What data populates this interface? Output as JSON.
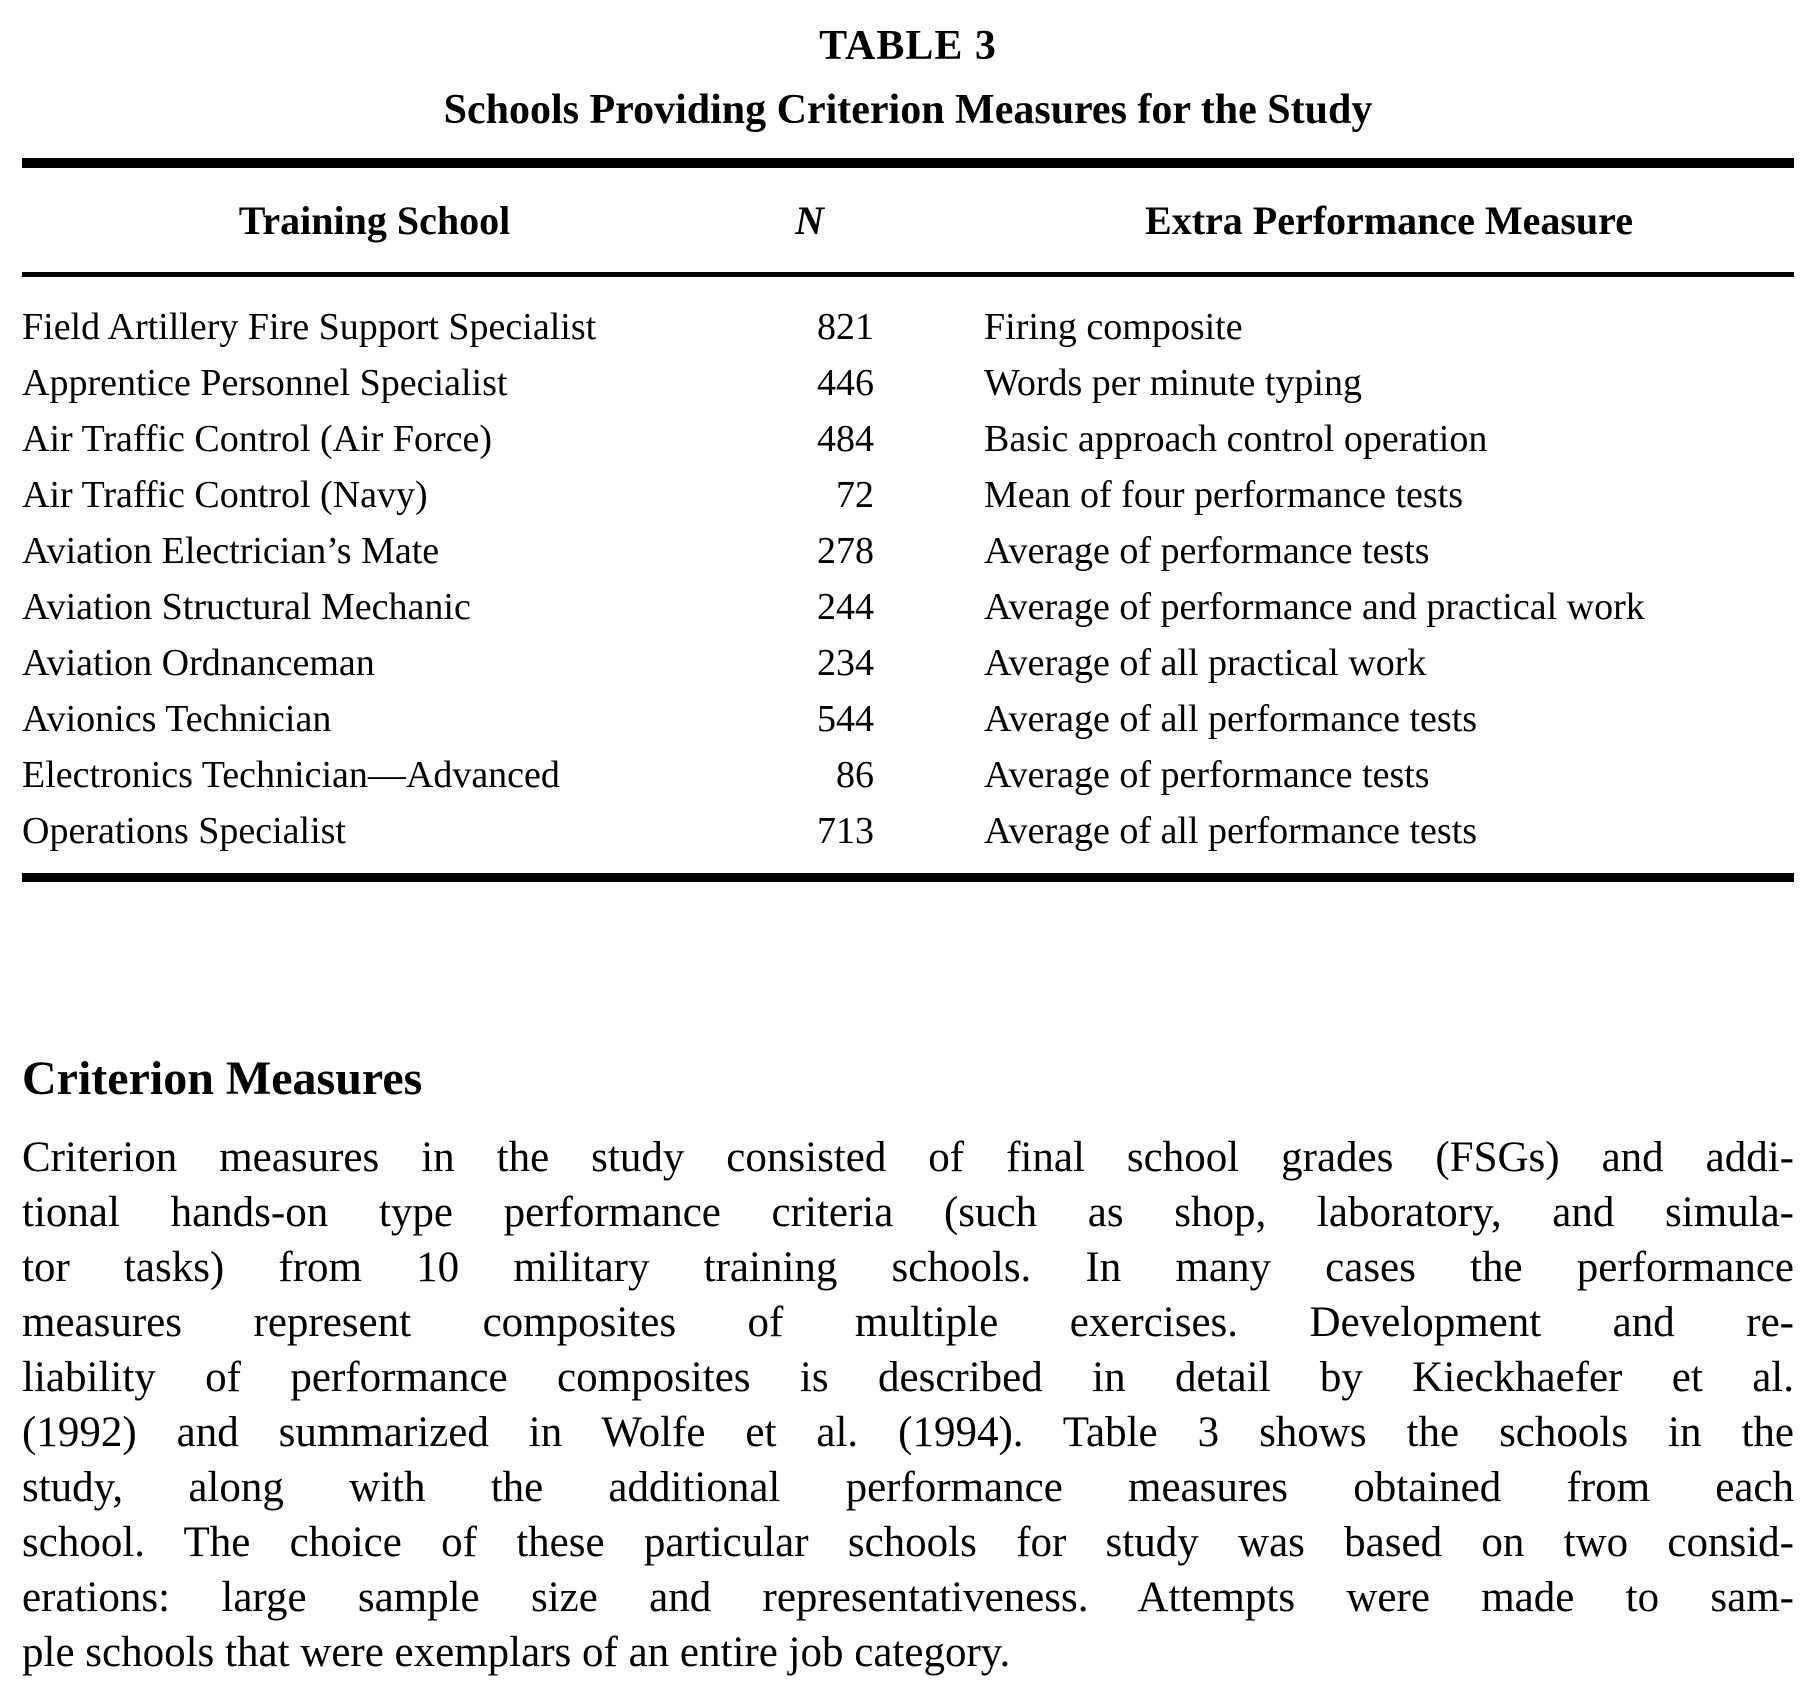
{
  "table": {
    "label": "TABLE 3",
    "title": "Schools Providing Criterion Measures for the Study",
    "columns": {
      "school": "Training School",
      "n": "N",
      "measure": "Extra Performance Measure"
    },
    "rows": [
      {
        "school": "Field Artillery Fire Support Specialist",
        "n": "821",
        "measure": "Firing composite"
      },
      {
        "school": "Apprentice Personnel Specialist",
        "n": "446",
        "measure": "Words per minute typing"
      },
      {
        "school": "Air Traffic Control (Air Force)",
        "n": "484",
        "measure": "Basic approach control operation"
      },
      {
        "school": "Air Traffic Control (Navy)",
        "n": "72",
        "measure": "Mean of four performance tests"
      },
      {
        "school": "Aviation Electrician’s Mate",
        "n": "278",
        "measure": "Average of performance tests"
      },
      {
        "school": "Aviation Structural Mechanic",
        "n": "244",
        "measure": "Average of performance and practical work"
      },
      {
        "school": "Aviation Ordnanceman",
        "n": "234",
        "measure": "Average of all practical work"
      },
      {
        "school": "Avionics Technician",
        "n": "544",
        "measure": "Average of all performance tests"
      },
      {
        "school": "Electronics Technician—Advanced",
        "n": "86",
        "measure": "Average of performance tests"
      },
      {
        "school": "Operations Specialist",
        "n": "713",
        "measure": "Average of all performance tests"
      }
    ]
  },
  "section": {
    "heading": "Criterion Measures",
    "lines": [
      "Criterion measures in the study consisted of final school grades (FSGs) and addi-",
      "tional hands-on type performance criteria (such as shop, laboratory, and simula-",
      "tor tasks) from 10 military training schools. In many cases the performance",
      "measures represent composites of multiple exercises. Development and re-",
      "liability of performance composites is described in detail by Kieckhaefer et al.",
      "(1992) and summarized in Wolfe et al. (1994). Table 3 shows the schools in the",
      "study, along with the additional performance measures obtained from each",
      "school. The choice of these particular schools for study was based on two consid-",
      "erations: large sample size and representativeness. Attempts were made to sam-",
      "ple schools that were exemplars of an entire job category."
    ]
  }
}
